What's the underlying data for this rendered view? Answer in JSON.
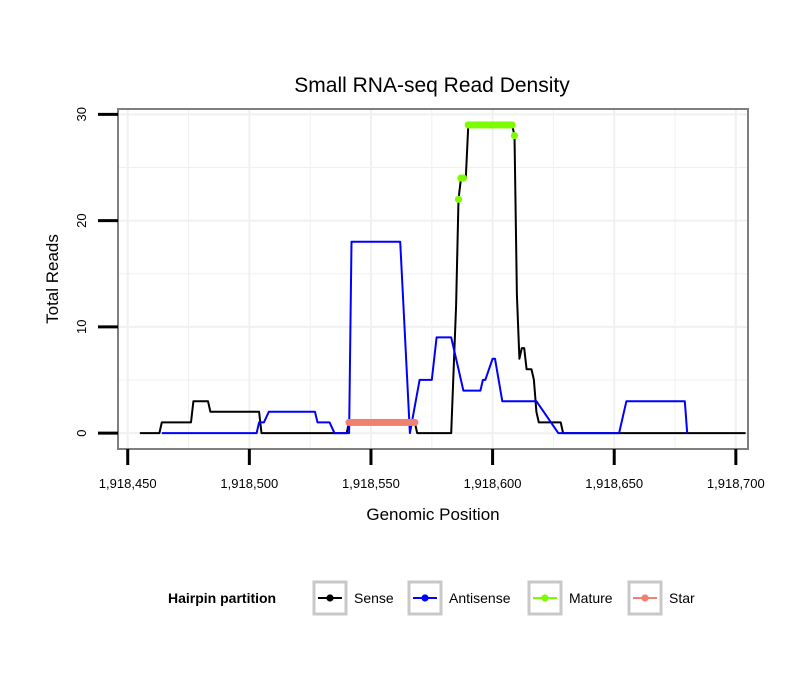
{
  "chart_data": {
    "type": "line",
    "title": "Small RNA-seq Read Density",
    "xlabel": "Genomic Position",
    "ylabel": "Total Reads",
    "xlim": [
      1918446,
      1918705
    ],
    "ylim": [
      -1.5,
      30.5
    ],
    "x_ticks": [
      1918450,
      1918500,
      1918550,
      1918600,
      1918650,
      1918700
    ],
    "x_tick_labels": [
      "1,918,450",
      "1,918,500",
      "1,918,550",
      "1,918,600",
      "1,918,650",
      "1,918,700"
    ],
    "y_ticks": [
      0,
      10,
      20,
      30
    ],
    "y_tick_labels": [
      "0",
      "10",
      "20",
      "30"
    ],
    "grid": true,
    "legend": {
      "title": "Hairpin partition",
      "position": "bottom",
      "entries": [
        {
          "name": "Sense",
          "color": "#000000"
        },
        {
          "name": "Antisense",
          "color": "#0000ff"
        },
        {
          "name": "Mature",
          "color": "#7cfc00"
        },
        {
          "name": "Star",
          "color": "#f08070"
        }
      ]
    },
    "series": [
      {
        "name": "Sense",
        "color": "#000000",
        "x": [
          1918455,
          1918463,
          1918464,
          1918476,
          1918477,
          1918483,
          1918484,
          1918504,
          1918505,
          1918540,
          1918541,
          1918568,
          1918569,
          1918583,
          1918585,
          1918586,
          1918587,
          1918588,
          1918589,
          1918590,
          1918591,
          1918608,
          1918609,
          1918610,
          1918611,
          1918612,
          1918613,
          1918614,
          1918616,
          1918617,
          1918618,
          1918619,
          1918628,
          1918629,
          1918704
        ],
        "values": [
          0,
          0,
          1,
          1,
          3,
          3,
          2,
          2,
          0,
          0,
          1,
          1,
          0,
          0,
          12,
          22,
          24,
          24,
          24,
          29,
          29,
          29,
          28,
          13,
          7,
          8,
          8,
          6,
          6,
          5,
          2,
          1,
          1,
          0,
          0
        ]
      },
      {
        "name": "Antisense",
        "color": "#0000ff",
        "x": [
          1918464,
          1918503,
          1918504,
          1918506,
          1918508,
          1918527,
          1918528,
          1918533,
          1918535,
          1918541,
          1918542,
          1918560,
          1918562,
          1918566,
          1918570,
          1918575,
          1918577,
          1918583,
          1918588,
          1918595,
          1918596,
          1918597,
          1918600,
          1918601,
          1918604,
          1918618,
          1918627,
          1918652,
          1918655,
          1918679,
          1918680
        ],
        "values": [
          0,
          0,
          1,
          1,
          2,
          2,
          1,
          1,
          0,
          0,
          18,
          18,
          18,
          0,
          5,
          5,
          9,
          9,
          4,
          4,
          5,
          5,
          7,
          7,
          3,
          3,
          0,
          0,
          3,
          3,
          0
        ]
      }
    ],
    "points": [
      {
        "name": "Mature",
        "color": "#7cfc00",
        "x": [
          1918586,
          1918587,
          1918588,
          1918590,
          1918591,
          1918592,
          1918593,
          1918594,
          1918595,
          1918596,
          1918597,
          1918598,
          1918599,
          1918600,
          1918601,
          1918602,
          1918603,
          1918604,
          1918605,
          1918606,
          1918607,
          1918608,
          1918609
        ],
        "values": [
          22,
          24,
          24,
          29,
          29,
          29,
          29,
          29,
          29,
          29,
          29,
          29,
          29,
          29,
          29,
          29,
          29,
          29,
          29,
          29,
          29,
          29,
          28
        ]
      },
      {
        "name": "Star",
        "color": "#f08070",
        "x": [
          1918541,
          1918542,
          1918543,
          1918544,
          1918545,
          1918546,
          1918547,
          1918548,
          1918549,
          1918550,
          1918551,
          1918552,
          1918553,
          1918554,
          1918555,
          1918556,
          1918557,
          1918558,
          1918559,
          1918560,
          1918561,
          1918562,
          1918563,
          1918564,
          1918565,
          1918566,
          1918567,
          1918568
        ],
        "values": [
          1,
          1,
          1,
          1,
          1,
          1,
          1,
          1,
          1,
          1,
          1,
          1,
          1,
          1,
          1,
          1,
          1,
          1,
          1,
          1,
          1,
          1,
          1,
          1,
          1,
          1,
          1,
          1
        ]
      }
    ]
  }
}
